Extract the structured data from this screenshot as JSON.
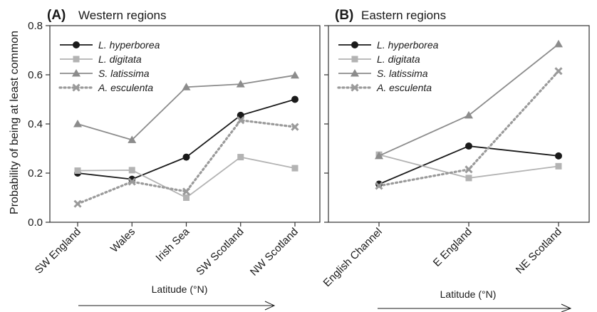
{
  "chart_data": [
    {
      "type": "line",
      "panel": "(A)",
      "title": "Western regions",
      "ylabel": "Probability of being at least common",
      "xlabel": "Latitude (°N)",
      "categories": [
        "SW England",
        "Wales",
        "Irish Sea",
        "SW Scotland",
        "NW Scotland"
      ],
      "ylim": [
        0,
        0.8
      ],
      "yticks": [
        "0.0",
        "0.2",
        "0.4",
        "0.6",
        "0.8"
      ],
      "legend_position": "top-left",
      "series": [
        {
          "name": "L. hyperborea",
          "values": [
            0.2,
            0.175,
            0.265,
            0.435,
            0.5
          ],
          "color": "#1a1a1a",
          "marker": "circle",
          "dash": "solid"
        },
        {
          "name": "L. digitata",
          "values": [
            0.21,
            0.212,
            0.1,
            0.265,
            0.22
          ],
          "color": "#b3b3b3",
          "marker": "square",
          "dash": "solid"
        },
        {
          "name": "S. latissima",
          "values": [
            0.4,
            0.335,
            0.55,
            0.562,
            0.598
          ],
          "color": "#8c8c8c",
          "marker": "triangle",
          "dash": "solid"
        },
        {
          "name": "A. esculenta",
          "values": [
            0.075,
            0.165,
            0.125,
            0.415,
            0.388
          ],
          "color": "#9a9a9a",
          "marker": "x",
          "dash": "dotted"
        }
      ]
    },
    {
      "type": "line",
      "panel": "(B)",
      "title": "Eastern regions",
      "xlabel": "Latitude (°N)",
      "categories": [
        "English Channel",
        "E England",
        "NE Scotland"
      ],
      "ylim": [
        0,
        0.8
      ],
      "legend_position": "top-left",
      "series": [
        {
          "name": "L. hyperborea",
          "values": [
            0.155,
            0.31,
            0.27
          ],
          "color": "#1a1a1a",
          "marker": "circle",
          "dash": "solid"
        },
        {
          "name": "L. digitata",
          "values": [
            0.275,
            0.18,
            0.228
          ],
          "color": "#b3b3b3",
          "marker": "square",
          "dash": "solid"
        },
        {
          "name": "S. latissima",
          "values": [
            0.27,
            0.435,
            0.725
          ],
          "color": "#8c8c8c",
          "marker": "triangle",
          "dash": "solid"
        },
        {
          "name": "A. esculenta",
          "values": [
            0.148,
            0.215,
            0.615
          ],
          "color": "#9a9a9a",
          "marker": "x",
          "dash": "dotted"
        }
      ]
    }
  ]
}
